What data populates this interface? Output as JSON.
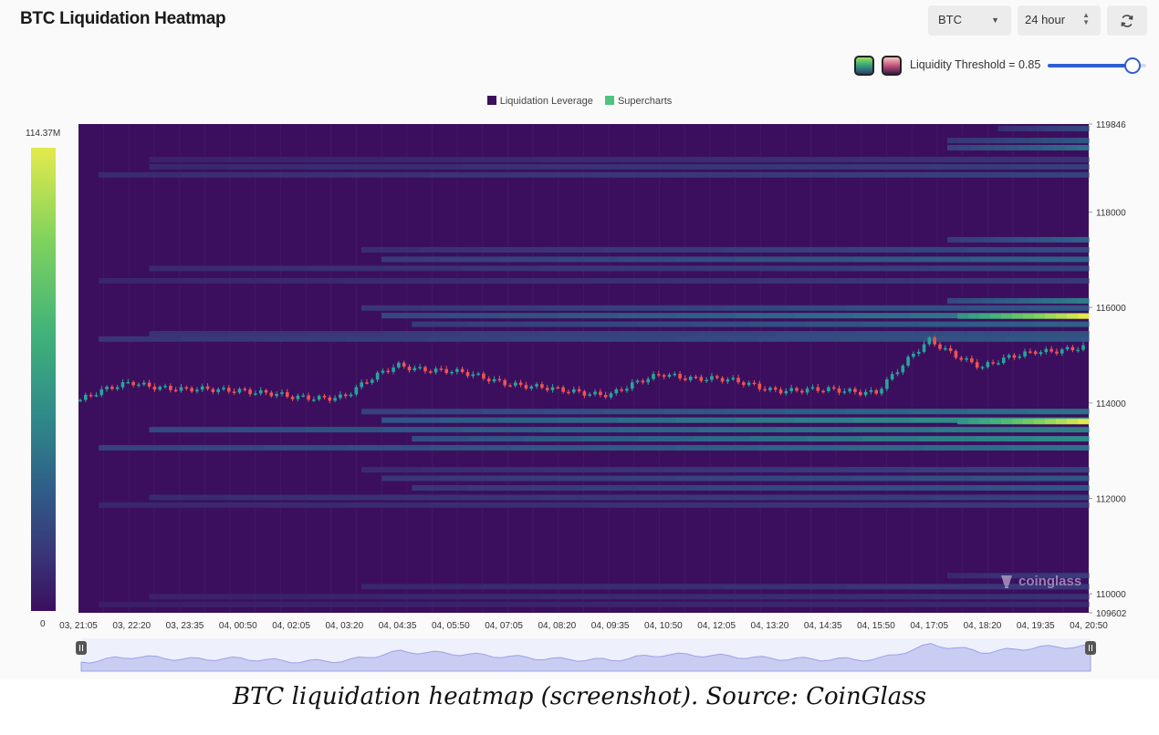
{
  "header": {
    "title": "BTC Liquidation Heatmap",
    "symbol_select": "BTC",
    "range_select": "24 hour"
  },
  "threshold": {
    "label": "Liquidity Threshold = 0.85",
    "value": 0.85
  },
  "colors": {
    "background": "#3b0f5e",
    "colorscale": [
      "#3b0f5e",
      "#3a3578",
      "#2f5d88",
      "#2f8a8a",
      "#41b27a",
      "#7fd25e",
      "#e4ea4c"
    ],
    "candle_up": "#26a69a",
    "candle_down": "#ef5350",
    "slider_accent": "#2f5fd0"
  },
  "icons": {
    "symbol_caret": "chevron-down-icon",
    "range_caret": "updown-chevron-icon",
    "refresh": "refresh-icon",
    "watermark": "coinglass-logo"
  },
  "watermark_text": "coinglass",
  "caption": "BTC liquidation heatmap (screenshot). Source: CoinGlass",
  "chart_data": {
    "type": "heatmap",
    "title": "",
    "legend": [
      {
        "name": "Liquidation Leverage",
        "color": "#3b0f5e"
      },
      {
        "name": "Supercharts",
        "color": "#4fc47f"
      }
    ],
    "legend_position": "top-center",
    "colorbar": {
      "max_label": "114.37M",
      "min_label": "0",
      "max": 114.37,
      "min": 0
    },
    "x_tick_labels": [
      "03, 21:05",
      "03, 22:20",
      "03, 23:35",
      "04, 00:50",
      "04, 02:05",
      "04, 03:20",
      "04, 04:35",
      "04, 05:50",
      "04, 07:05",
      "04, 08:20",
      "04, 09:35",
      "04, 10:50",
      "04, 12:05",
      "04, 13:20",
      "04, 14:35",
      "04, 15:50",
      "04, 17:05",
      "04, 18:20",
      "04, 19:35",
      "04, 20:50"
    ],
    "y_tick_labels": [
      "119846",
      "118000",
      "116000",
      "114000",
      "112000",
      "110000",
      "109602"
    ],
    "ylim": [
      109602,
      119846
    ],
    "y_ticks": [
      119846,
      118000,
      116000,
      114000,
      112000,
      110000,
      109602
    ],
    "grid": true,
    "liquidation_bands": [
      {
        "price": 119750,
        "start": 0.91,
        "intensity": 0.25
      },
      {
        "price": 119500,
        "start": 0.86,
        "intensity": 0.3
      },
      {
        "price": 119350,
        "start": 0.86,
        "intensity": 0.4
      },
      {
        "price": 119100,
        "start": 0.07,
        "intensity": 0.16
      },
      {
        "price": 118950,
        "start": 0.07,
        "intensity": 0.2
      },
      {
        "price": 118780,
        "start": 0.02,
        "intensity": 0.22
      },
      {
        "price": 117420,
        "start": 0.86,
        "intensity": 0.35
      },
      {
        "price": 117210,
        "start": 0.28,
        "intensity": 0.25
      },
      {
        "price": 117010,
        "start": 0.3,
        "intensity": 0.35
      },
      {
        "price": 116820,
        "start": 0.07,
        "intensity": 0.22
      },
      {
        "price": 116560,
        "start": 0.02,
        "intensity": 0.18
      },
      {
        "price": 116140,
        "start": 0.86,
        "intensity": 0.45
      },
      {
        "price": 115990,
        "start": 0.28,
        "intensity": 0.3
      },
      {
        "price": 115830,
        "start": 0.3,
        "intensity": 0.45
      },
      {
        "price": 115820,
        "start": 0.87,
        "intensity": 1.0
      },
      {
        "price": 115650,
        "start": 0.33,
        "intensity": 0.35
      },
      {
        "price": 115450,
        "start": 0.07,
        "intensity": 0.28
      },
      {
        "price": 115340,
        "start": 0.02,
        "intensity": 0.3
      },
      {
        "price": 113820,
        "start": 0.28,
        "intensity": 0.4
      },
      {
        "price": 113640,
        "start": 0.3,
        "intensity": 0.55
      },
      {
        "price": 113610,
        "start": 0.87,
        "intensity": 1.0
      },
      {
        "price": 113440,
        "start": 0.07,
        "intensity": 0.45
      },
      {
        "price": 113250,
        "start": 0.33,
        "intensity": 0.5
      },
      {
        "price": 113060,
        "start": 0.02,
        "intensity": 0.4
      },
      {
        "price": 112600,
        "start": 0.28,
        "intensity": 0.22
      },
      {
        "price": 112420,
        "start": 0.3,
        "intensity": 0.3
      },
      {
        "price": 112220,
        "start": 0.33,
        "intensity": 0.3
      },
      {
        "price": 112020,
        "start": 0.07,
        "intensity": 0.22
      },
      {
        "price": 111860,
        "start": 0.02,
        "intensity": 0.18
      },
      {
        "price": 110380,
        "start": 0.86,
        "intensity": 0.2
      },
      {
        "price": 110150,
        "start": 0.28,
        "intensity": 0.18
      },
      {
        "price": 109940,
        "start": 0.07,
        "intensity": 0.15
      },
      {
        "price": 109780,
        "start": 0.02,
        "intensity": 0.12
      }
    ],
    "price_path": [
      {
        "t": "03, 21:05",
        "price": 114050
      },
      {
        "t": "03, 22:20",
        "price": 114450
      },
      {
        "t": "03, 23:35",
        "price": 114250
      },
      {
        "t": "04, 00:50",
        "price": 114300
      },
      {
        "t": "04, 02:05",
        "price": 114100
      },
      {
        "t": "04, 03:20",
        "price": 114150
      },
      {
        "t": "04, 04:35",
        "price": 114800
      },
      {
        "t": "04, 05:50",
        "price": 114650
      },
      {
        "t": "04, 07:05",
        "price": 114450
      },
      {
        "t": "04, 08:20",
        "price": 114250
      },
      {
        "t": "04, 09:35",
        "price": 114200
      },
      {
        "t": "04, 10:50",
        "price": 114600
      },
      {
        "t": "04, 12:05",
        "price": 114500
      },
      {
        "t": "04, 13:20",
        "price": 114300
      },
      {
        "t": "04, 14:35",
        "price": 114250
      },
      {
        "t": "04, 15:50",
        "price": 114250
      },
      {
        "t": "04, 17:05",
        "price": 115300
      },
      {
        "t": "04, 18:20",
        "price": 114750
      },
      {
        "t": "04, 19:35",
        "price": 115100
      },
      {
        "t": "04, 20:50",
        "price": 115150
      }
    ]
  }
}
